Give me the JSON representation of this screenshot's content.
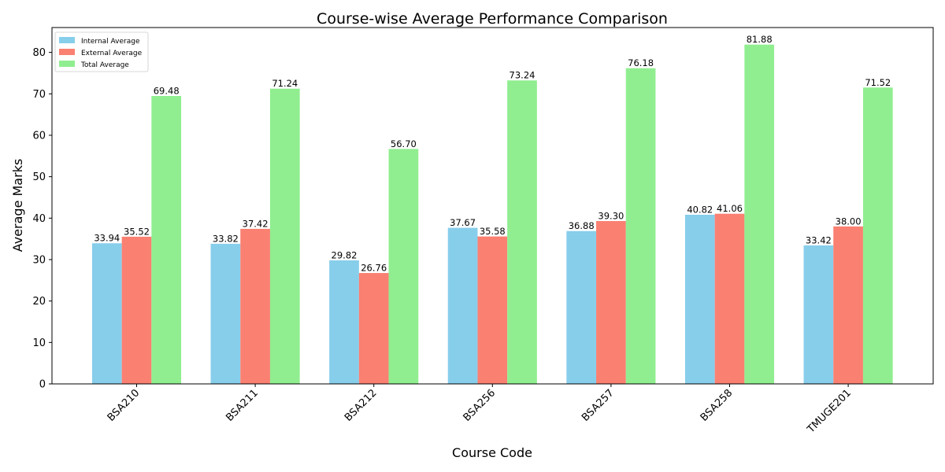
{
  "chart_data": {
    "type": "bar",
    "title": "Course-wise Average Performance Comparison",
    "xlabel": "Course Code",
    "ylabel": "Average Marks",
    "categories": [
      "BSA210",
      "BSA211",
      "BSA212",
      "BSA256",
      "BSA257",
      "BSA258",
      "TMUGE201"
    ],
    "series": [
      {
        "name": "Internal Average",
        "color": "#87ceeb",
        "values": [
          33.94,
          33.82,
          29.82,
          37.67,
          36.88,
          40.82,
          33.42
        ],
        "labels": [
          "33.94",
          "33.82",
          "29.82",
          "37.67",
          "36.88",
          "40.82",
          "33.42"
        ]
      },
      {
        "name": "External Average",
        "color": "#fa8072",
        "values": [
          35.52,
          37.42,
          26.76,
          35.58,
          39.3,
          41.06,
          38.0
        ],
        "labels": [
          "35.52",
          "37.42",
          "26.76",
          "35.58",
          "39.30",
          "41.06",
          "38.00"
        ]
      },
      {
        "name": "Total Average",
        "color": "#90ee90",
        "values": [
          69.48,
          71.24,
          56.7,
          73.24,
          76.18,
          81.88,
          71.52
        ],
        "labels": [
          "69.48",
          "71.24",
          "56.70",
          "73.24",
          "76.18",
          "81.88",
          "71.52"
        ]
      }
    ],
    "ylim": [
      0,
      86
    ],
    "yticks": [
      0,
      10,
      20,
      30,
      40,
      50,
      60,
      70,
      80
    ],
    "ytick_labels": [
      "0",
      "10",
      "20",
      "30",
      "40",
      "50",
      "60",
      "70",
      "80"
    ],
    "grid": false,
    "legend_position": "upper-left"
  }
}
